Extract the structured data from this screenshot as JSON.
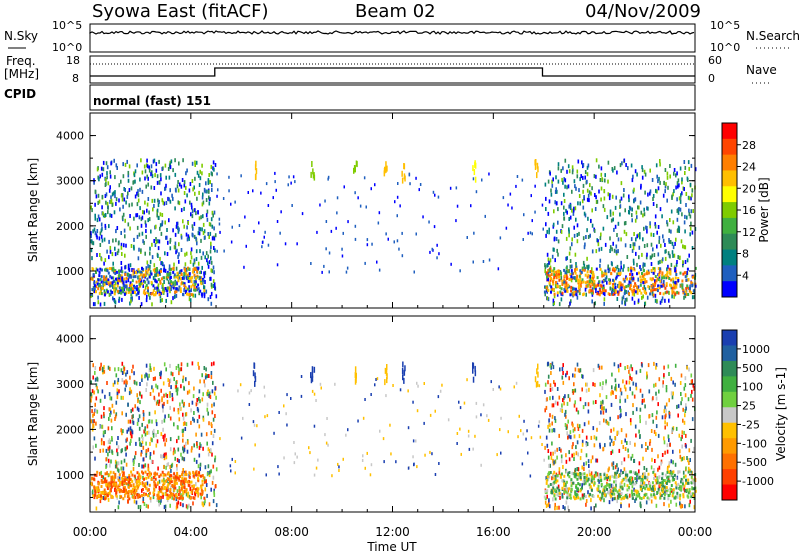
{
  "header": {
    "station": "Syowa East (fitACF)",
    "beam": "Beam 02",
    "date": "04/Nov/2009"
  },
  "noise_panel": {
    "left_label": "N.Sky",
    "right_label": "N.Search",
    "left_ticks": [
      "10^5",
      "10^0"
    ],
    "right_ticks": [
      "10^5",
      "10^0"
    ]
  },
  "freq_panel": {
    "left_label_line1": "Freq.",
    "left_label_line2": "[MHz]",
    "left_ticks": [
      "18",
      "8"
    ],
    "right_label": "Nave",
    "right_ticks": [
      "60",
      "0"
    ],
    "cpid_label": "CPID"
  },
  "cpid_panel": {
    "text": "normal (fast) 151"
  },
  "chart_data": [
    {
      "type": "heatmap",
      "name": "power",
      "ylabel": "Slant Range [km]",
      "yticks": [
        "4000",
        "3000",
        "2000",
        "1000"
      ],
      "ylim": [
        180,
        4500
      ],
      "xlim_hours": [
        0,
        24
      ],
      "colorbar_label": "Power [dB]",
      "colorbar_ticks": [
        "28",
        "24",
        "20",
        "16",
        "12",
        "8",
        "4"
      ],
      "colorbar_colors": [
        "#ff0000",
        "#ff4500",
        "#ff7f00",
        "#ffbf00",
        "#ffff00",
        "#7fcc00",
        "#40b040",
        "#2e8b57",
        "#008080",
        "#1f5fbf",
        "#0000ff"
      ]
    },
    {
      "type": "heatmap",
      "name": "velocity",
      "ylabel": "Slant Range [km]",
      "yticks": [
        "4000",
        "3000",
        "2000",
        "1000"
      ],
      "ylim": [
        180,
        4500
      ],
      "xlim_hours": [
        0,
        24
      ],
      "colorbar_label": "Velocity [m s-1]",
      "colorbar_ticks": [
        "1000",
        "500",
        "100",
        "25",
        "-25",
        "-100",
        "-500",
        "-1000"
      ],
      "colorbar_colors": [
        "#1a3fb0",
        "#2060a0",
        "#2e8b57",
        "#40b040",
        "#70d040",
        "#c8c8c8",
        "#ffc000",
        "#ff9a00",
        "#ff7000",
        "#ff4000",
        "#ff0000"
      ]
    }
  ],
  "x_axis": {
    "label": "Time UT",
    "ticks": [
      "00:00",
      "04:00",
      "08:00",
      "12:00",
      "16:00",
      "20:00",
      "00:00"
    ]
  }
}
